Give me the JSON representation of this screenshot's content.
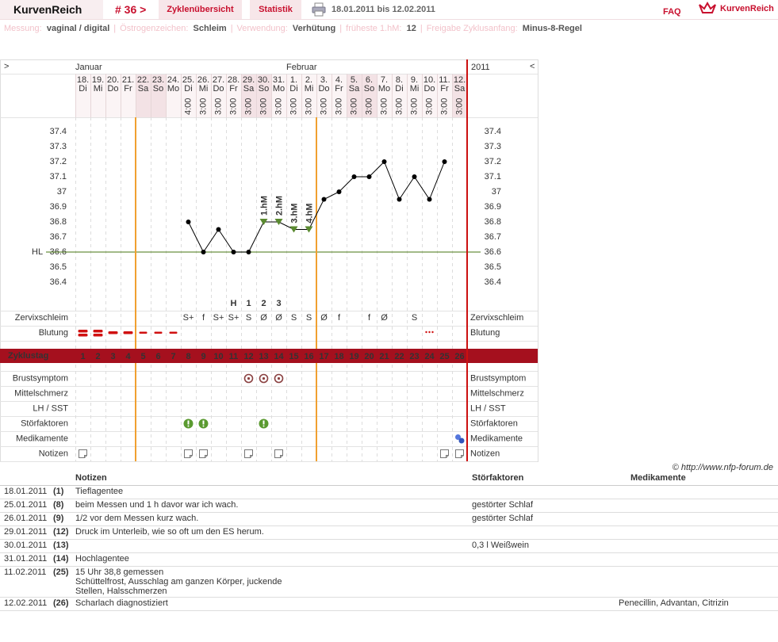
{
  "header": {
    "logo": "KurvenReich",
    "cycle": "# 36 >",
    "tabs": [
      "Zyklenübersicht",
      "Statistik"
    ],
    "period": "18.01.2011 bis 12.02.2011",
    "faq": "FAQ",
    "brand": "KurvenReich"
  },
  "settings": [
    {
      "label": "Messung:",
      "value": "vaginal / digital"
    },
    {
      "label": "Östrogenzeichen:",
      "value": "Schleim"
    },
    {
      "label": "Verwendung:",
      "value": "Verhütung"
    },
    {
      "label": "früheste 1.hM:",
      "value": "12"
    },
    {
      "label": "Freigabe Zyklusanfang:",
      "value": "Minus-8-Regel"
    }
  ],
  "chart_data": {
    "type": "line",
    "prev": ">",
    "next": "<",
    "year": "2011",
    "months": [
      "Januar",
      null,
      null,
      null,
      null,
      null,
      null,
      null,
      null,
      null,
      null,
      null,
      null,
      null,
      "Februar",
      null,
      null,
      null,
      null,
      null,
      null,
      null,
      null,
      null,
      null,
      null
    ],
    "dates": [
      "18.",
      "19.",
      "20.",
      "21.",
      "22.",
      "23.",
      "24.",
      "25.",
      "26.",
      "27.",
      "28.",
      "29.",
      "30.",
      "31.",
      "1.",
      "2.",
      "3.",
      "4.",
      "5.",
      "6.",
      "7.",
      "8.",
      "9.",
      "10.",
      "11.",
      "12."
    ],
    "weekdays": [
      "Di",
      "Mi",
      "Do",
      "Fr",
      "Sa",
      "So",
      "Mo",
      "Di",
      "Mi",
      "Do",
      "Fr",
      "Sa",
      "So",
      "Mo",
      "Di",
      "Mi",
      "Do",
      "Fr",
      "Sa",
      "So",
      "Mo",
      "Di",
      "Mi",
      "Do",
      "Fr",
      "Sa"
    ],
    "times": [
      null,
      null,
      null,
      null,
      null,
      null,
      null,
      "4:00",
      "3:00",
      "3:00",
      "3:00",
      "3:00",
      "3:00",
      "3:00",
      "3:00",
      "3:00",
      "3:00",
      "3:00",
      "3:00",
      "3:00",
      "3:00",
      "3:00",
      "3:00",
      "3:00",
      "3:00",
      "3:00"
    ],
    "values": [
      null,
      null,
      null,
      null,
      null,
      null,
      null,
      36.8,
      36.6,
      36.75,
      36.6,
      36.6,
      36.8,
      36.8,
      36.75,
      36.75,
      36.95,
      37,
      37.1,
      37.1,
      37.2,
      36.95,
      37.1,
      36.95,
      37.2,
      null
    ],
    "color": "#000000",
    "ylim": [
      36.2,
      37.5
    ],
    "yticks": [
      37.4,
      37.3,
      37.2,
      37.1,
      37,
      36.9,
      36.8,
      36.7,
      36.6,
      36.5,
      36.4
    ],
    "hl": {
      "label": "HL",
      "value": 36.6,
      "color": "#6a9040"
    },
    "hm_labels": [
      null,
      null,
      null,
      null,
      null,
      null,
      null,
      null,
      null,
      null,
      null,
      null,
      "1.hM",
      "2.hM",
      "3.hM",
      "4.hM",
      null,
      null,
      null,
      null,
      null,
      null,
      null,
      null,
      null,
      null
    ],
    "hm_color": "#5a8a30",
    "peak_labels": [
      null,
      null,
      null,
      null,
      null,
      null,
      null,
      null,
      null,
      null,
      "H",
      "1",
      "2",
      "3",
      null,
      null,
      null,
      null,
      null,
      null,
      null,
      null,
      null,
      null,
      null,
      null
    ],
    "cervix": {
      "label": "Zervixschleim",
      "color": "#f08a10",
      "values": [
        null,
        null,
        null,
        null,
        null,
        null,
        null,
        "S+",
        "f",
        "S+",
        "S+",
        "S",
        "Ø",
        "Ø",
        "S",
        "S",
        "Ø",
        "f",
        null,
        "f",
        "Ø",
        null,
        "S",
        null,
        null,
        null
      ]
    },
    "bleeding": {
      "label": "Blutung",
      "color": "#d01010",
      "values": [
        "heavy",
        "heavy",
        "medium",
        "medium",
        "light",
        "light",
        "light",
        null,
        null,
        null,
        null,
        null,
        null,
        null,
        null,
        null,
        null,
        null,
        null,
        null,
        null,
        null,
        null,
        "spotting",
        null,
        null
      ]
    },
    "cycle_label": "Zyklustag",
    "cycle_days": [
      1,
      2,
      3,
      4,
      5,
      6,
      7,
      8,
      9,
      10,
      11,
      12,
      13,
      14,
      15,
      16,
      17,
      18,
      19,
      20,
      21,
      22,
      23,
      24,
      25,
      26
    ],
    "fertile_window": {
      "start": 5,
      "end": 16,
      "color": "#f0a030"
    },
    "rows": [
      {
        "label": "Brustsymptom",
        "icon": "ring",
        "marks": [
          false,
          false,
          false,
          false,
          false,
          false,
          false,
          false,
          false,
          false,
          false,
          true,
          true,
          true,
          false,
          false,
          false,
          false,
          false,
          false,
          false,
          false,
          false,
          false,
          false,
          false
        ]
      },
      {
        "label": "Mittelschmerz",
        "icon": "ring",
        "marks": [
          false,
          false,
          false,
          false,
          false,
          false,
          false,
          false,
          false,
          false,
          false,
          false,
          false,
          false,
          false,
          false,
          false,
          false,
          false,
          false,
          false,
          false,
          false,
          false,
          false,
          false
        ]
      },
      {
        "label": "LH / SST",
        "icon": "ring",
        "marks": [
          false,
          false,
          false,
          false,
          false,
          false,
          false,
          false,
          false,
          false,
          false,
          false,
          false,
          false,
          false,
          false,
          false,
          false,
          false,
          false,
          false,
          false,
          false,
          false,
          false,
          false
        ]
      },
      {
        "label": "Störfaktoren",
        "icon": "alert",
        "marks": [
          false,
          false,
          false,
          false,
          false,
          false,
          false,
          true,
          true,
          false,
          false,
          false,
          true,
          false,
          false,
          false,
          false,
          false,
          false,
          false,
          false,
          false,
          false,
          false,
          false,
          false
        ]
      },
      {
        "label": "Medikamente",
        "icon": "pill",
        "marks": [
          false,
          false,
          false,
          false,
          false,
          false,
          false,
          false,
          false,
          false,
          false,
          false,
          false,
          false,
          false,
          false,
          false,
          false,
          false,
          false,
          false,
          false,
          false,
          false,
          false,
          true
        ]
      },
      {
        "label": "Notizen",
        "icon": "note",
        "marks": [
          true,
          false,
          false,
          false,
          false,
          false,
          false,
          true,
          true,
          false,
          false,
          true,
          false,
          true,
          false,
          false,
          false,
          false,
          false,
          false,
          false,
          false,
          false,
          false,
          true,
          true
        ]
      }
    ]
  },
  "copyright": "© http://www.nfp-forum.de",
  "notes_table": {
    "columns": [
      "Notizen",
      "Störfaktoren",
      "Medikamente"
    ],
    "rows": [
      {
        "date": "18.01.2011",
        "day": "(1)",
        "note": "Tieflagentee",
        "disturbance": null,
        "medication": null
      },
      {
        "date": "25.01.2011",
        "day": "(8)",
        "note": "beim Messen und 1 h davor war ich wach.",
        "disturbance": "gestörter Schlaf",
        "medication": null
      },
      {
        "date": "26.01.2011",
        "day": "(9)",
        "note": "1/2 vor dem Messen kurz wach.",
        "disturbance": "gestörter Schlaf",
        "medication": null
      },
      {
        "date": "29.01.2011",
        "day": "(12)",
        "note": "Druck im Unterleib, wie so oft um den ES herum.",
        "disturbance": null,
        "medication": null
      },
      {
        "date": "30.01.2011",
        "day": "(13)",
        "note": null,
        "disturbance": "0,3 l Weißwein",
        "medication": null
      },
      {
        "date": "31.01.2011",
        "day": "(14)",
        "note": "Hochlagentee",
        "disturbance": null,
        "medication": null
      },
      {
        "date": "11.02.2011",
        "day": "(25)",
        "note": "15 Uhr 38,8 gemessen\nSchüttelfrost, Ausschlag am ganzen Körper, juckende\nStellen, Halsschmerzen",
        "disturbance": null,
        "medication": null
      },
      {
        "date": "12.02.2011",
        "day": "(26)",
        "note": "Scharlach diagnostiziert",
        "disturbance": null,
        "medication": "Penecillin, Advantan, Citrizin"
      }
    ]
  }
}
